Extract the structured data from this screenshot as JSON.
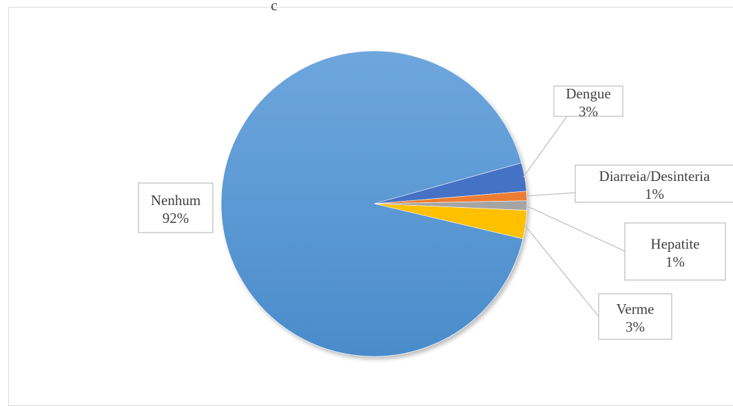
{
  "chart_data": {
    "type": "pie",
    "title": "",
    "categories": [
      "Dengue",
      "Diarreia/Desinteria",
      "Hepatite",
      "Verme",
      "Nenhum"
    ],
    "values": [
      3,
      1,
      1,
      3,
      92
    ],
    "labels": [
      {
        "name": "Dengue",
        "pct": "3%"
      },
      {
        "name": "Diarreia/Desinteria",
        "pct": "1%"
      },
      {
        "name": "Hepatite",
        "pct": "1%"
      },
      {
        "name": "Verme",
        "pct": "3%"
      },
      {
        "name": "Nenhum",
        "pct": "92%"
      }
    ],
    "colors": [
      "#4472c4",
      "#ed7d31",
      "#a5a5a5",
      "#ffc000",
      "#5b9bd5"
    ],
    "legend": "none"
  }
}
